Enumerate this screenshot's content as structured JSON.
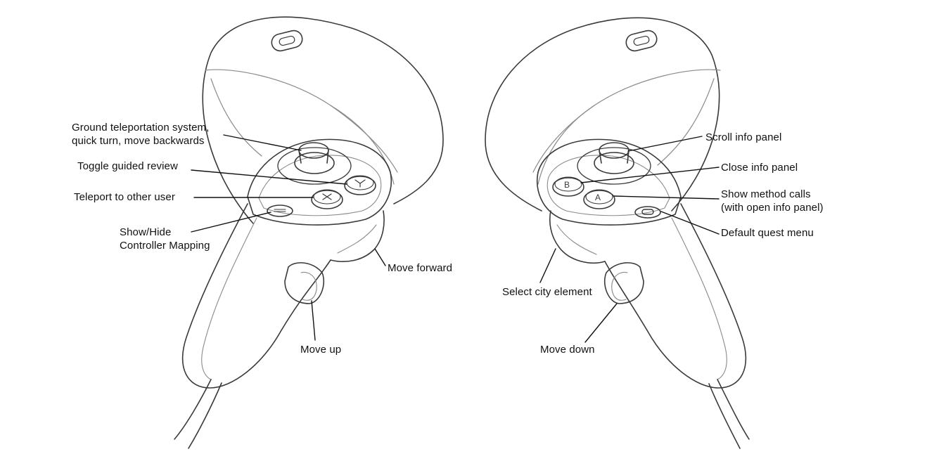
{
  "colors": {
    "background": "#ffffff",
    "ink": "#111111",
    "outline": "#3a3a3a",
    "detail": "#8a8a8a"
  },
  "left_controller": {
    "labels": {
      "joystick": [
        "Ground teleportation system,",
        "quick turn, move backwards"
      ],
      "button_y": "Toggle guided review",
      "button_x": "Teleport to other user",
      "menu_button": [
        "Show/Hide",
        "Controller Mapping"
      ],
      "trigger": "Move forward",
      "grip": "Move up"
    },
    "icons": {
      "button_y": "Y-letter-icon",
      "button_x": "X-letter-icon",
      "menu_button": "hamburger-menu-icon"
    }
  },
  "right_controller": {
    "labels": {
      "joystick": "Scroll info panel",
      "button_b": "Close info panel",
      "button_a": [
        "Show method calls",
        "(with open info panel)"
      ],
      "oculus_button": "Default quest menu",
      "trigger": "Select city element",
      "grip": "Move down"
    },
    "icons": {
      "button_b": "B-letter-icon",
      "button_a": "A-letter-icon",
      "oculus_button": "oculus-logo-icon"
    }
  }
}
